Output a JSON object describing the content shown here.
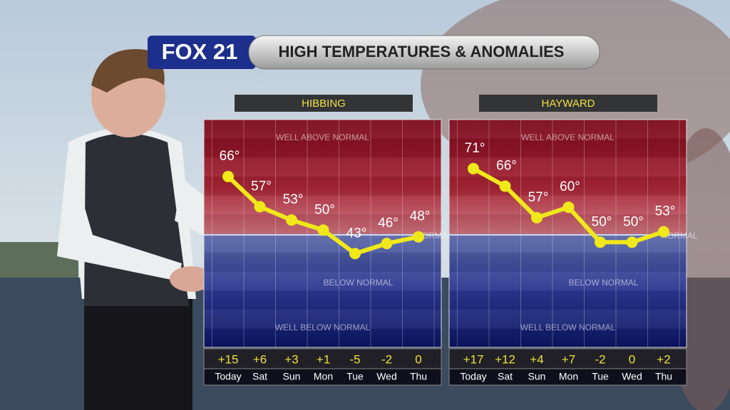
{
  "logo": "FOX 21",
  "title": "HIGH TEMPERATURES & ANOMALIES",
  "chart_data": [
    {
      "type": "line",
      "title": "HIBBING",
      "categories": [
        "Today",
        "Sat",
        "Sun",
        "Mon",
        "Tue",
        "Wed",
        "Thu"
      ],
      "series": [
        {
          "color": "#f0e81a",
          "values": [
            66,
            57,
            53,
            50,
            43,
            46,
            48
          ],
          "value_labels": [
            "66°",
            "57°",
            "53°",
            "50°",
            "43°",
            "46°",
            "48°"
          ]
        }
      ],
      "ylim": [
        15,
        83
      ],
      "annotations": [
        "WELL ABOVE NORMAL",
        "NORMAL",
        "BELOW NORMAL",
        "WELL BELOW NORMAL"
      ],
      "anomalies": {
        "values": [
          15,
          6,
          3,
          1,
          -5,
          -2,
          0
        ],
        "value_labels": [
          "+15",
          "+6",
          "+3",
          "+1",
          "-5",
          "-2",
          "0"
        ]
      }
    },
    {
      "type": "line",
      "title": "HAYWARD",
      "categories": [
        "Today",
        "Sat",
        "Sun",
        "Mon",
        "Tue",
        "Wed",
        "Thu"
      ],
      "series": [
        {
          "color": "#f0e81a",
          "values": [
            71,
            66,
            57,
            60,
            50,
            50,
            53
          ],
          "value_labels": [
            "71°",
            "66°",
            "57°",
            "60°",
            "50°",
            "50°",
            "53°"
          ]
        }
      ],
      "ylim": [
        20,
        85
      ],
      "annotations": [
        "WELL ABOVE NORMAL",
        "NORMAL",
        "BELOW NORMAL",
        "WELL BELOW NORMAL"
      ],
      "anomalies": {
        "values": [
          17,
          12,
          4,
          7,
          -2,
          0,
          2
        ],
        "value_labels": [
          "+17",
          "+12",
          "+4",
          "+7",
          "-2",
          "0",
          "+2"
        ]
      }
    }
  ]
}
